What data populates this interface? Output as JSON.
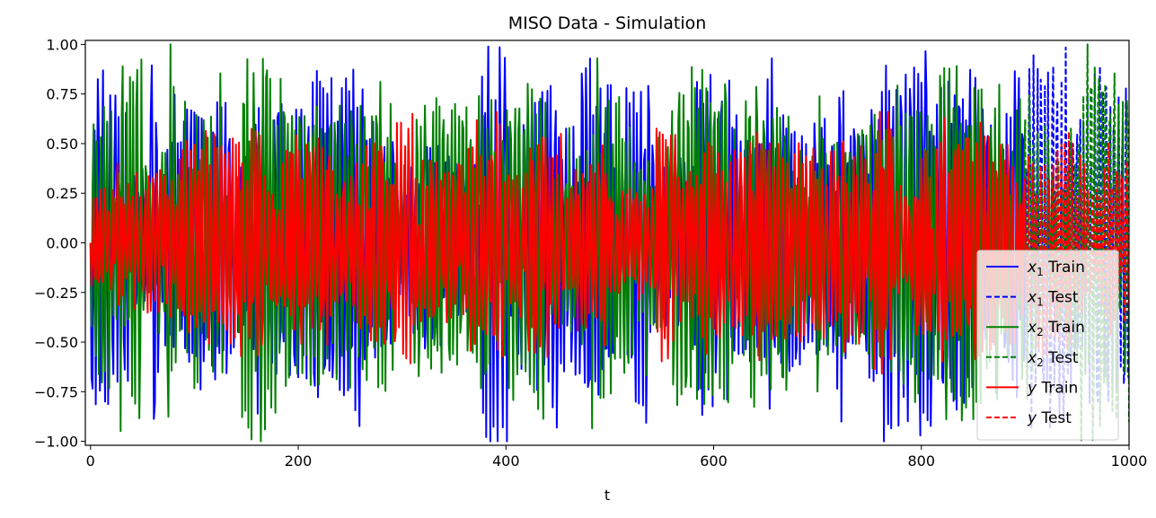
{
  "chart_data": {
    "type": "line",
    "title": "MISO Data - Simulation",
    "xlabel": "t",
    "ylabel": "",
    "xlim": [
      -5,
      1000
    ],
    "ylim": [
      -1.02,
      1.02
    ],
    "xticks": [
      0,
      200,
      400,
      600,
      800,
      1000
    ],
    "yticks": [
      -1.0,
      -0.75,
      -0.5,
      -0.25,
      0.0,
      0.25,
      0.5,
      0.75,
      1.0
    ],
    "xtick_labels": [
      "0",
      "200",
      "400",
      "600",
      "800",
      "1000"
    ],
    "ytick_labels": [
      "−1.00",
      "−0.75",
      "−0.50",
      "−0.25",
      "0.00",
      "0.25",
      "0.50",
      "0.75",
      "1.00"
    ],
    "grid": false,
    "legend_position": "lower right",
    "train_range": [
      0,
      900
    ],
    "test_range": [
      900,
      1000
    ],
    "series": [
      {
        "name_var": "x",
        "name_sub": "1",
        "name_suffix": " Train",
        "color": "#0000ff",
        "style": "solid",
        "split": "train",
        "amplitude": 1.0,
        "seed": 11
      },
      {
        "name_var": "x",
        "name_sub": "1",
        "name_suffix": " Test",
        "color": "#0000ff",
        "style": "dashed",
        "split": "test",
        "amplitude": 1.0,
        "seed": 11
      },
      {
        "name_var": "x",
        "name_sub": "2",
        "name_suffix": " Train",
        "color": "#008000",
        "style": "solid",
        "split": "train",
        "amplitude": 1.0,
        "seed": 23
      },
      {
        "name_var": "x",
        "name_sub": "2",
        "name_suffix": " Test",
        "color": "#008000",
        "style": "dashed",
        "split": "test",
        "amplitude": 1.0,
        "seed": 23
      },
      {
        "name_var": "y",
        "name_sub": "",
        "name_suffix": " Train",
        "color": "#ff0000",
        "style": "solid",
        "split": "train",
        "amplitude": 0.65,
        "seed": 37
      },
      {
        "name_var": "y",
        "name_sub": "",
        "name_suffix": " Test",
        "color": "#ff0000",
        "style": "dashed",
        "split": "test",
        "amplitude": 0.65,
        "seed": 37
      }
    ]
  }
}
